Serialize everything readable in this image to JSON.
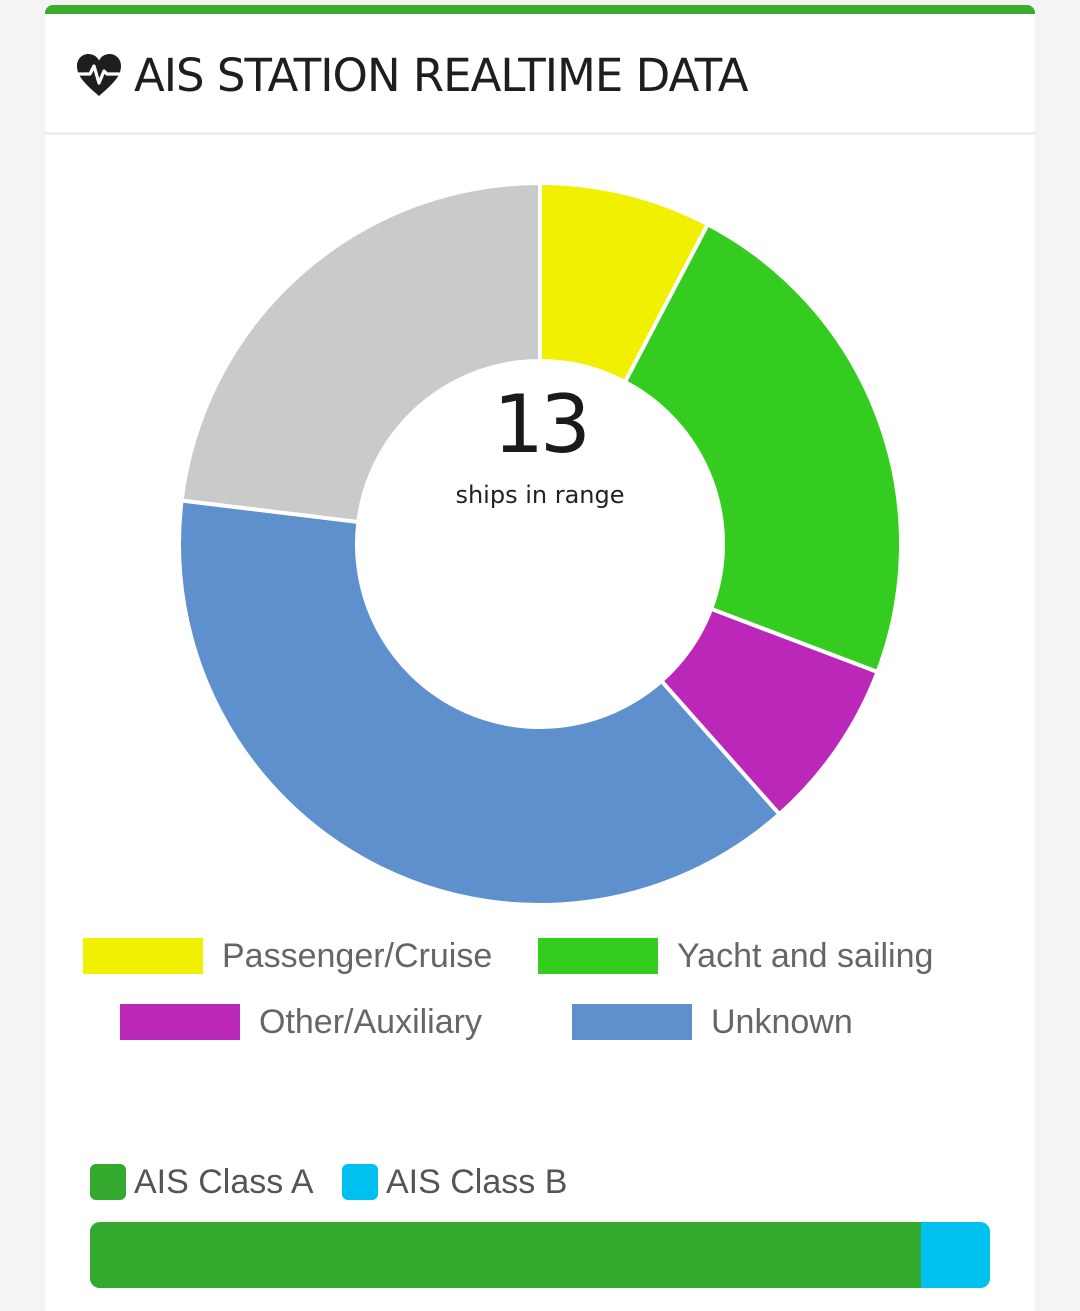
{
  "header": {
    "title": "AIS STATION REALTIME DATA",
    "icon": "heartbeat-icon"
  },
  "summary": {
    "count": "13",
    "label": "ships in range"
  },
  "chart_data": [
    {
      "type": "pie",
      "variant": "doughnut",
      "center_text": "13",
      "center_subtext": "ships in range",
      "categories": [
        "Passenger/Cruise",
        "Yacht and sailing",
        "Other/Auxiliary",
        "Unknown",
        ""
      ],
      "values": [
        1,
        3,
        1,
        5,
        3
      ],
      "colors": [
        "#f0f000",
        "#33cc1f",
        "#bb27b8",
        "#5e90cd",
        "#cacaca"
      ],
      "legend": {
        "placement": "bottom",
        "items": [
          {
            "label": "Passenger/Cruise",
            "color": "#f0f000"
          },
          {
            "label": "Yacht and sailing",
            "color": "#33cc1f"
          },
          {
            "label": "Other/Auxiliary",
            "color": "#bb27b8"
          },
          {
            "label": "Unknown",
            "color": "#5e90cd"
          }
        ]
      }
    },
    {
      "type": "bar",
      "orientation": "horizontal-stacked",
      "series": [
        {
          "name": "AIS Class A",
          "value": 12,
          "color": "#33aa2e"
        },
        {
          "name": "AIS Class B",
          "value": 1,
          "color": "#00c0ef"
        }
      ],
      "legend": {
        "placement": "top-left"
      }
    }
  ]
}
